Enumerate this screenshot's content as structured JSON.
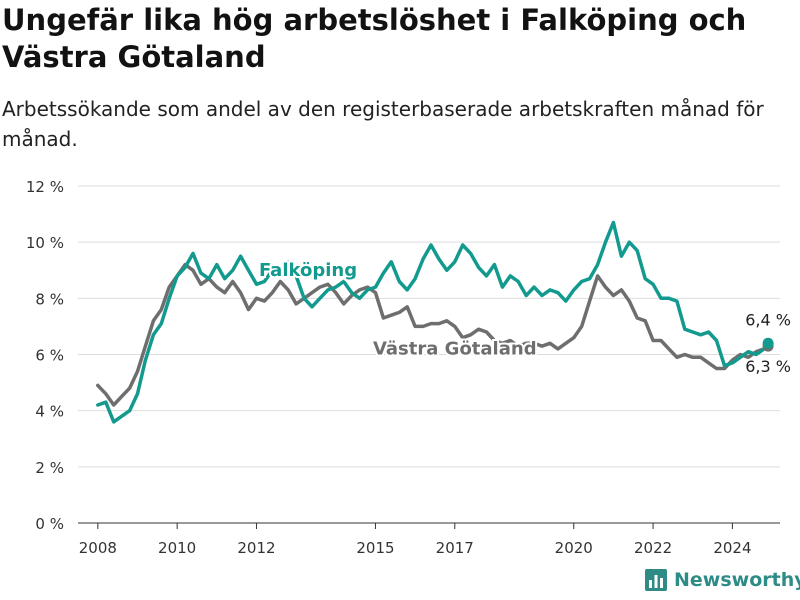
{
  "title": "Ungefär lika hög arbetslöshet i Falköping och Västra Götaland",
  "subtitle": "Arbetssökande som andel av den registerbaserade arbetskraften månad för månad.",
  "brand": "Newsworthy",
  "colors": {
    "falkoping": "#139a8f",
    "vastra_gotaland": "#6e6e6e",
    "grid": "#dddddd",
    "brand": "#2e8b85"
  },
  "chart_data": {
    "type": "line",
    "title": "Ungefär lika hög arbetslöshet i Falköping och Västra Götaland",
    "subtitle": "Arbetssökande som andel av den registerbaserade arbetskraften månad för månad.",
    "xlabel": "",
    "ylabel": "",
    "ylim": [
      0,
      12
    ],
    "xlim": [
      2007.5,
      2025.2
    ],
    "y_ticks": [
      0,
      2,
      4,
      6,
      8,
      10,
      12
    ],
    "y_tick_labels": [
      "0 %",
      "2 %",
      "4 %",
      "6 %",
      "8 %",
      "10 %",
      "12 %"
    ],
    "x_ticks": [
      2008,
      2010,
      2012,
      2015,
      2017,
      2020,
      2022,
      2024
    ],
    "x_tick_labels": [
      "2008",
      "2010",
      "2012",
      "2015",
      "2017",
      "2020",
      "2022",
      "2024"
    ],
    "grid": "horizontal",
    "series": [
      {
        "name": "Falköping",
        "label": "Falköping",
        "end_label": "6,4 %",
        "points": [
          [
            2008.0,
            4.2
          ],
          [
            2008.2,
            4.3
          ],
          [
            2008.4,
            3.6
          ],
          [
            2008.6,
            3.8
          ],
          [
            2008.8,
            4.0
          ],
          [
            2009.0,
            4.6
          ],
          [
            2009.2,
            5.8
          ],
          [
            2009.4,
            6.7
          ],
          [
            2009.6,
            7.1
          ],
          [
            2009.8,
            8.0
          ],
          [
            2010.0,
            8.8
          ],
          [
            2010.2,
            9.1
          ],
          [
            2010.4,
            9.6
          ],
          [
            2010.6,
            8.9
          ],
          [
            2010.8,
            8.7
          ],
          [
            2011.0,
            9.2
          ],
          [
            2011.2,
            8.7
          ],
          [
            2011.4,
            9.0
          ],
          [
            2011.6,
            9.5
          ],
          [
            2011.8,
            9.0
          ],
          [
            2012.0,
            8.5
          ],
          [
            2012.2,
            8.6
          ],
          [
            2012.4,
            9.0
          ],
          [
            2012.6,
            8.9
          ],
          [
            2012.8,
            9.3
          ],
          [
            2013.0,
            8.8
          ],
          [
            2013.2,
            8.0
          ],
          [
            2013.4,
            7.7
          ],
          [
            2013.6,
            8.0
          ],
          [
            2013.8,
            8.3
          ],
          [
            2014.0,
            8.4
          ],
          [
            2014.2,
            8.6
          ],
          [
            2014.4,
            8.2
          ],
          [
            2014.6,
            8.0
          ],
          [
            2014.8,
            8.3
          ],
          [
            2015.0,
            8.4
          ],
          [
            2015.2,
            8.9
          ],
          [
            2015.4,
            9.3
          ],
          [
            2015.6,
            8.6
          ],
          [
            2015.8,
            8.3
          ],
          [
            2016.0,
            8.7
          ],
          [
            2016.2,
            9.4
          ],
          [
            2016.4,
            9.9
          ],
          [
            2016.6,
            9.4
          ],
          [
            2016.8,
            9.0
          ],
          [
            2017.0,
            9.3
          ],
          [
            2017.2,
            9.9
          ],
          [
            2017.4,
            9.6
          ],
          [
            2017.6,
            9.1
          ],
          [
            2017.8,
            8.8
          ],
          [
            2018.0,
            9.2
          ],
          [
            2018.2,
            8.4
          ],
          [
            2018.4,
            8.8
          ],
          [
            2018.6,
            8.6
          ],
          [
            2018.8,
            8.1
          ],
          [
            2019.0,
            8.4
          ],
          [
            2019.2,
            8.1
          ],
          [
            2019.4,
            8.3
          ],
          [
            2019.6,
            8.2
          ],
          [
            2019.8,
            7.9
          ],
          [
            2020.0,
            8.3
          ],
          [
            2020.2,
            8.6
          ],
          [
            2020.4,
            8.7
          ],
          [
            2020.6,
            9.2
          ],
          [
            2020.8,
            10.0
          ],
          [
            2021.0,
            10.7
          ],
          [
            2021.2,
            9.5
          ],
          [
            2021.4,
            10.0
          ],
          [
            2021.6,
            9.7
          ],
          [
            2021.8,
            8.7
          ],
          [
            2022.0,
            8.5
          ],
          [
            2022.2,
            8.0
          ],
          [
            2022.4,
            8.0
          ],
          [
            2022.6,
            7.9
          ],
          [
            2022.8,
            6.9
          ],
          [
            2023.0,
            6.8
          ],
          [
            2023.2,
            6.7
          ],
          [
            2023.4,
            6.8
          ],
          [
            2023.6,
            6.5
          ],
          [
            2023.8,
            5.6
          ],
          [
            2024.0,
            5.7
          ],
          [
            2024.2,
            5.9
          ],
          [
            2024.4,
            6.1
          ],
          [
            2024.6,
            6.0
          ],
          [
            2024.8,
            6.2
          ],
          [
            2024.9,
            6.4
          ]
        ]
      },
      {
        "name": "Västra Götaland",
        "label": "Västra Götaland",
        "end_label": "6,3 %",
        "points": [
          [
            2008.0,
            4.9
          ],
          [
            2008.2,
            4.6
          ],
          [
            2008.4,
            4.2
          ],
          [
            2008.6,
            4.5
          ],
          [
            2008.8,
            4.8
          ],
          [
            2009.0,
            5.4
          ],
          [
            2009.2,
            6.3
          ],
          [
            2009.4,
            7.2
          ],
          [
            2009.6,
            7.6
          ],
          [
            2009.8,
            8.4
          ],
          [
            2010.0,
            8.8
          ],
          [
            2010.2,
            9.2
          ],
          [
            2010.4,
            9.0
          ],
          [
            2010.6,
            8.5
          ],
          [
            2010.8,
            8.7
          ],
          [
            2011.0,
            8.4
          ],
          [
            2011.2,
            8.2
          ],
          [
            2011.4,
            8.6
          ],
          [
            2011.6,
            8.2
          ],
          [
            2011.8,
            7.6
          ],
          [
            2012.0,
            8.0
          ],
          [
            2012.2,
            7.9
          ],
          [
            2012.4,
            8.2
          ],
          [
            2012.6,
            8.6
          ],
          [
            2012.8,
            8.3
          ],
          [
            2013.0,
            7.8
          ],
          [
            2013.2,
            8.0
          ],
          [
            2013.4,
            8.2
          ],
          [
            2013.6,
            8.4
          ],
          [
            2013.8,
            8.5
          ],
          [
            2014.0,
            8.2
          ],
          [
            2014.2,
            7.8
          ],
          [
            2014.4,
            8.1
          ],
          [
            2014.6,
            8.3
          ],
          [
            2014.8,
            8.4
          ],
          [
            2015.0,
            8.2
          ],
          [
            2015.2,
            7.3
          ],
          [
            2015.4,
            7.4
          ],
          [
            2015.6,
            7.5
          ],
          [
            2015.8,
            7.7
          ],
          [
            2016.0,
            7.0
          ],
          [
            2016.2,
            7.0
          ],
          [
            2016.4,
            7.1
          ],
          [
            2016.6,
            7.1
          ],
          [
            2016.8,
            7.2
          ],
          [
            2017.0,
            7.0
          ],
          [
            2017.2,
            6.6
          ],
          [
            2017.4,
            6.7
          ],
          [
            2017.6,
            6.9
          ],
          [
            2017.8,
            6.8
          ],
          [
            2018.0,
            6.5
          ],
          [
            2018.2,
            6.4
          ],
          [
            2018.4,
            6.5
          ],
          [
            2018.6,
            6.3
          ],
          [
            2018.8,
            6.4
          ],
          [
            2019.0,
            6.4
          ],
          [
            2019.2,
            6.3
          ],
          [
            2019.4,
            6.4
          ],
          [
            2019.6,
            6.2
          ],
          [
            2019.8,
            6.4
          ],
          [
            2020.0,
            6.6
          ],
          [
            2020.2,
            7.0
          ],
          [
            2020.4,
            7.9
          ],
          [
            2020.6,
            8.8
          ],
          [
            2020.8,
            8.4
          ],
          [
            2021.0,
            8.1
          ],
          [
            2021.2,
            8.3
          ],
          [
            2021.4,
            7.9
          ],
          [
            2021.6,
            7.3
          ],
          [
            2021.8,
            7.2
          ],
          [
            2022.0,
            6.5
          ],
          [
            2022.2,
            6.5
          ],
          [
            2022.4,
            6.2
          ],
          [
            2022.6,
            5.9
          ],
          [
            2022.8,
            6.0
          ],
          [
            2023.0,
            5.9
          ],
          [
            2023.2,
            5.9
          ],
          [
            2023.4,
            5.7
          ],
          [
            2023.6,
            5.5
          ],
          [
            2023.8,
            5.5
          ],
          [
            2024.0,
            5.8
          ],
          [
            2024.2,
            6.0
          ],
          [
            2024.4,
            5.9
          ],
          [
            2024.6,
            6.1
          ],
          [
            2024.8,
            6.2
          ],
          [
            2024.9,
            6.3
          ]
        ]
      }
    ]
  }
}
